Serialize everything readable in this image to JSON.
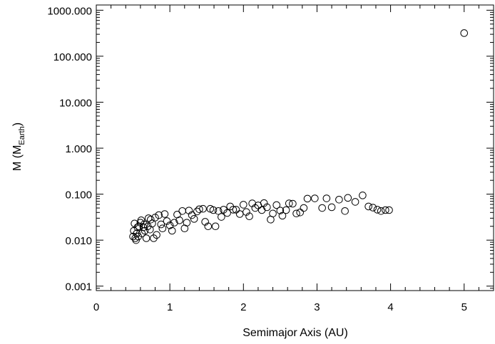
{
  "chart_data": {
    "type": "scatter",
    "xlabel": "Semimajor Axis (AU)",
    "ylabel": "M (M",
    "ylabel_sub": "Earth",
    "ylabel_close": ")",
    "xlim": [
      0,
      5.4
    ],
    "ylim": [
      0.0008,
      1300
    ],
    "yscale": "log",
    "grid": false,
    "xticks": [
      0,
      1,
      2,
      3,
      4,
      5
    ],
    "xtick_labels": [
      "0",
      "1",
      "2",
      "3",
      "4",
      "5"
    ],
    "yticks": [
      0.001,
      0.01,
      0.1,
      1,
      10,
      100,
      1000
    ],
    "ytick_labels": [
      "0.001",
      "0.010",
      "0.100",
      "1.000",
      "10.000",
      "100.000",
      "1000.000"
    ],
    "marker": "open-circle",
    "points": [
      [
        0.5,
        0.012
      ],
      [
        0.51,
        0.016
      ],
      [
        0.52,
        0.023
      ],
      [
        0.53,
        0.011
      ],
      [
        0.54,
        0.01
      ],
      [
        0.55,
        0.014
      ],
      [
        0.56,
        0.019
      ],
      [
        0.57,
        0.012
      ],
      [
        0.58,
        0.02
      ],
      [
        0.6,
        0.024
      ],
      [
        0.61,
        0.027
      ],
      [
        0.62,
        0.014
      ],
      [
        0.64,
        0.019
      ],
      [
        0.65,
        0.022
      ],
      [
        0.66,
        0.016
      ],
      [
        0.68,
        0.011
      ],
      [
        0.7,
        0.02
      ],
      [
        0.71,
        0.03
      ],
      [
        0.73,
        0.017
      ],
      [
        0.74,
        0.028
      ],
      [
        0.76,
        0.023
      ],
      [
        0.78,
        0.011
      ],
      [
        0.8,
        0.031
      ],
      [
        0.82,
        0.013
      ],
      [
        0.85,
        0.035
      ],
      [
        0.88,
        0.022
      ],
      [
        0.9,
        0.018
      ],
      [
        0.93,
        0.037
      ],
      [
        0.96,
        0.026
      ],
      [
        1.0,
        0.021
      ],
      [
        1.03,
        0.016
      ],
      [
        1.06,
        0.024
      ],
      [
        1.1,
        0.036
      ],
      [
        1.13,
        0.027
      ],
      [
        1.17,
        0.043
      ],
      [
        1.2,
        0.018
      ],
      [
        1.23,
        0.024
      ],
      [
        1.26,
        0.044
      ],
      [
        1.3,
        0.035
      ],
      [
        1.33,
        0.029
      ],
      [
        1.37,
        0.042
      ],
      [
        1.4,
        0.047
      ],
      [
        1.45,
        0.048
      ],
      [
        1.48,
        0.025
      ],
      [
        1.52,
        0.02
      ],
      [
        1.55,
        0.048
      ],
      [
        1.59,
        0.045
      ],
      [
        1.62,
        0.02
      ],
      [
        1.66,
        0.043
      ],
      [
        1.7,
        0.032
      ],
      [
        1.73,
        0.046
      ],
      [
        1.78,
        0.039
      ],
      [
        1.82,
        0.054
      ],
      [
        1.86,
        0.046
      ],
      [
        1.9,
        0.046
      ],
      [
        1.95,
        0.037
      ],
      [
        2.0,
        0.059
      ],
      [
        2.04,
        0.041
      ],
      [
        2.08,
        0.033
      ],
      [
        2.12,
        0.063
      ],
      [
        2.16,
        0.05
      ],
      [
        2.2,
        0.057
      ],
      [
        2.25,
        0.045
      ],
      [
        2.28,
        0.064
      ],
      [
        2.32,
        0.052
      ],
      [
        2.37,
        0.028
      ],
      [
        2.4,
        0.038
      ],
      [
        2.45,
        0.058
      ],
      [
        2.5,
        0.044
      ],
      [
        2.53,
        0.034
      ],
      [
        2.58,
        0.045
      ],
      [
        2.62,
        0.063
      ],
      [
        2.67,
        0.062
      ],
      [
        2.72,
        0.038
      ],
      [
        2.77,
        0.04
      ],
      [
        2.82,
        0.05
      ],
      [
        2.87,
        0.08
      ],
      [
        2.97,
        0.081
      ],
      [
        3.07,
        0.05
      ],
      [
        3.13,
        0.081
      ],
      [
        3.2,
        0.052
      ],
      [
        3.3,
        0.076
      ],
      [
        3.38,
        0.043
      ],
      [
        3.42,
        0.083
      ],
      [
        3.52,
        0.068
      ],
      [
        3.62,
        0.094
      ],
      [
        3.7,
        0.054
      ],
      [
        3.76,
        0.051
      ],
      [
        3.82,
        0.046
      ],
      [
        3.87,
        0.043
      ],
      [
        3.93,
        0.045
      ],
      [
        3.98,
        0.045
      ],
      [
        5.0,
        318
      ]
    ]
  }
}
